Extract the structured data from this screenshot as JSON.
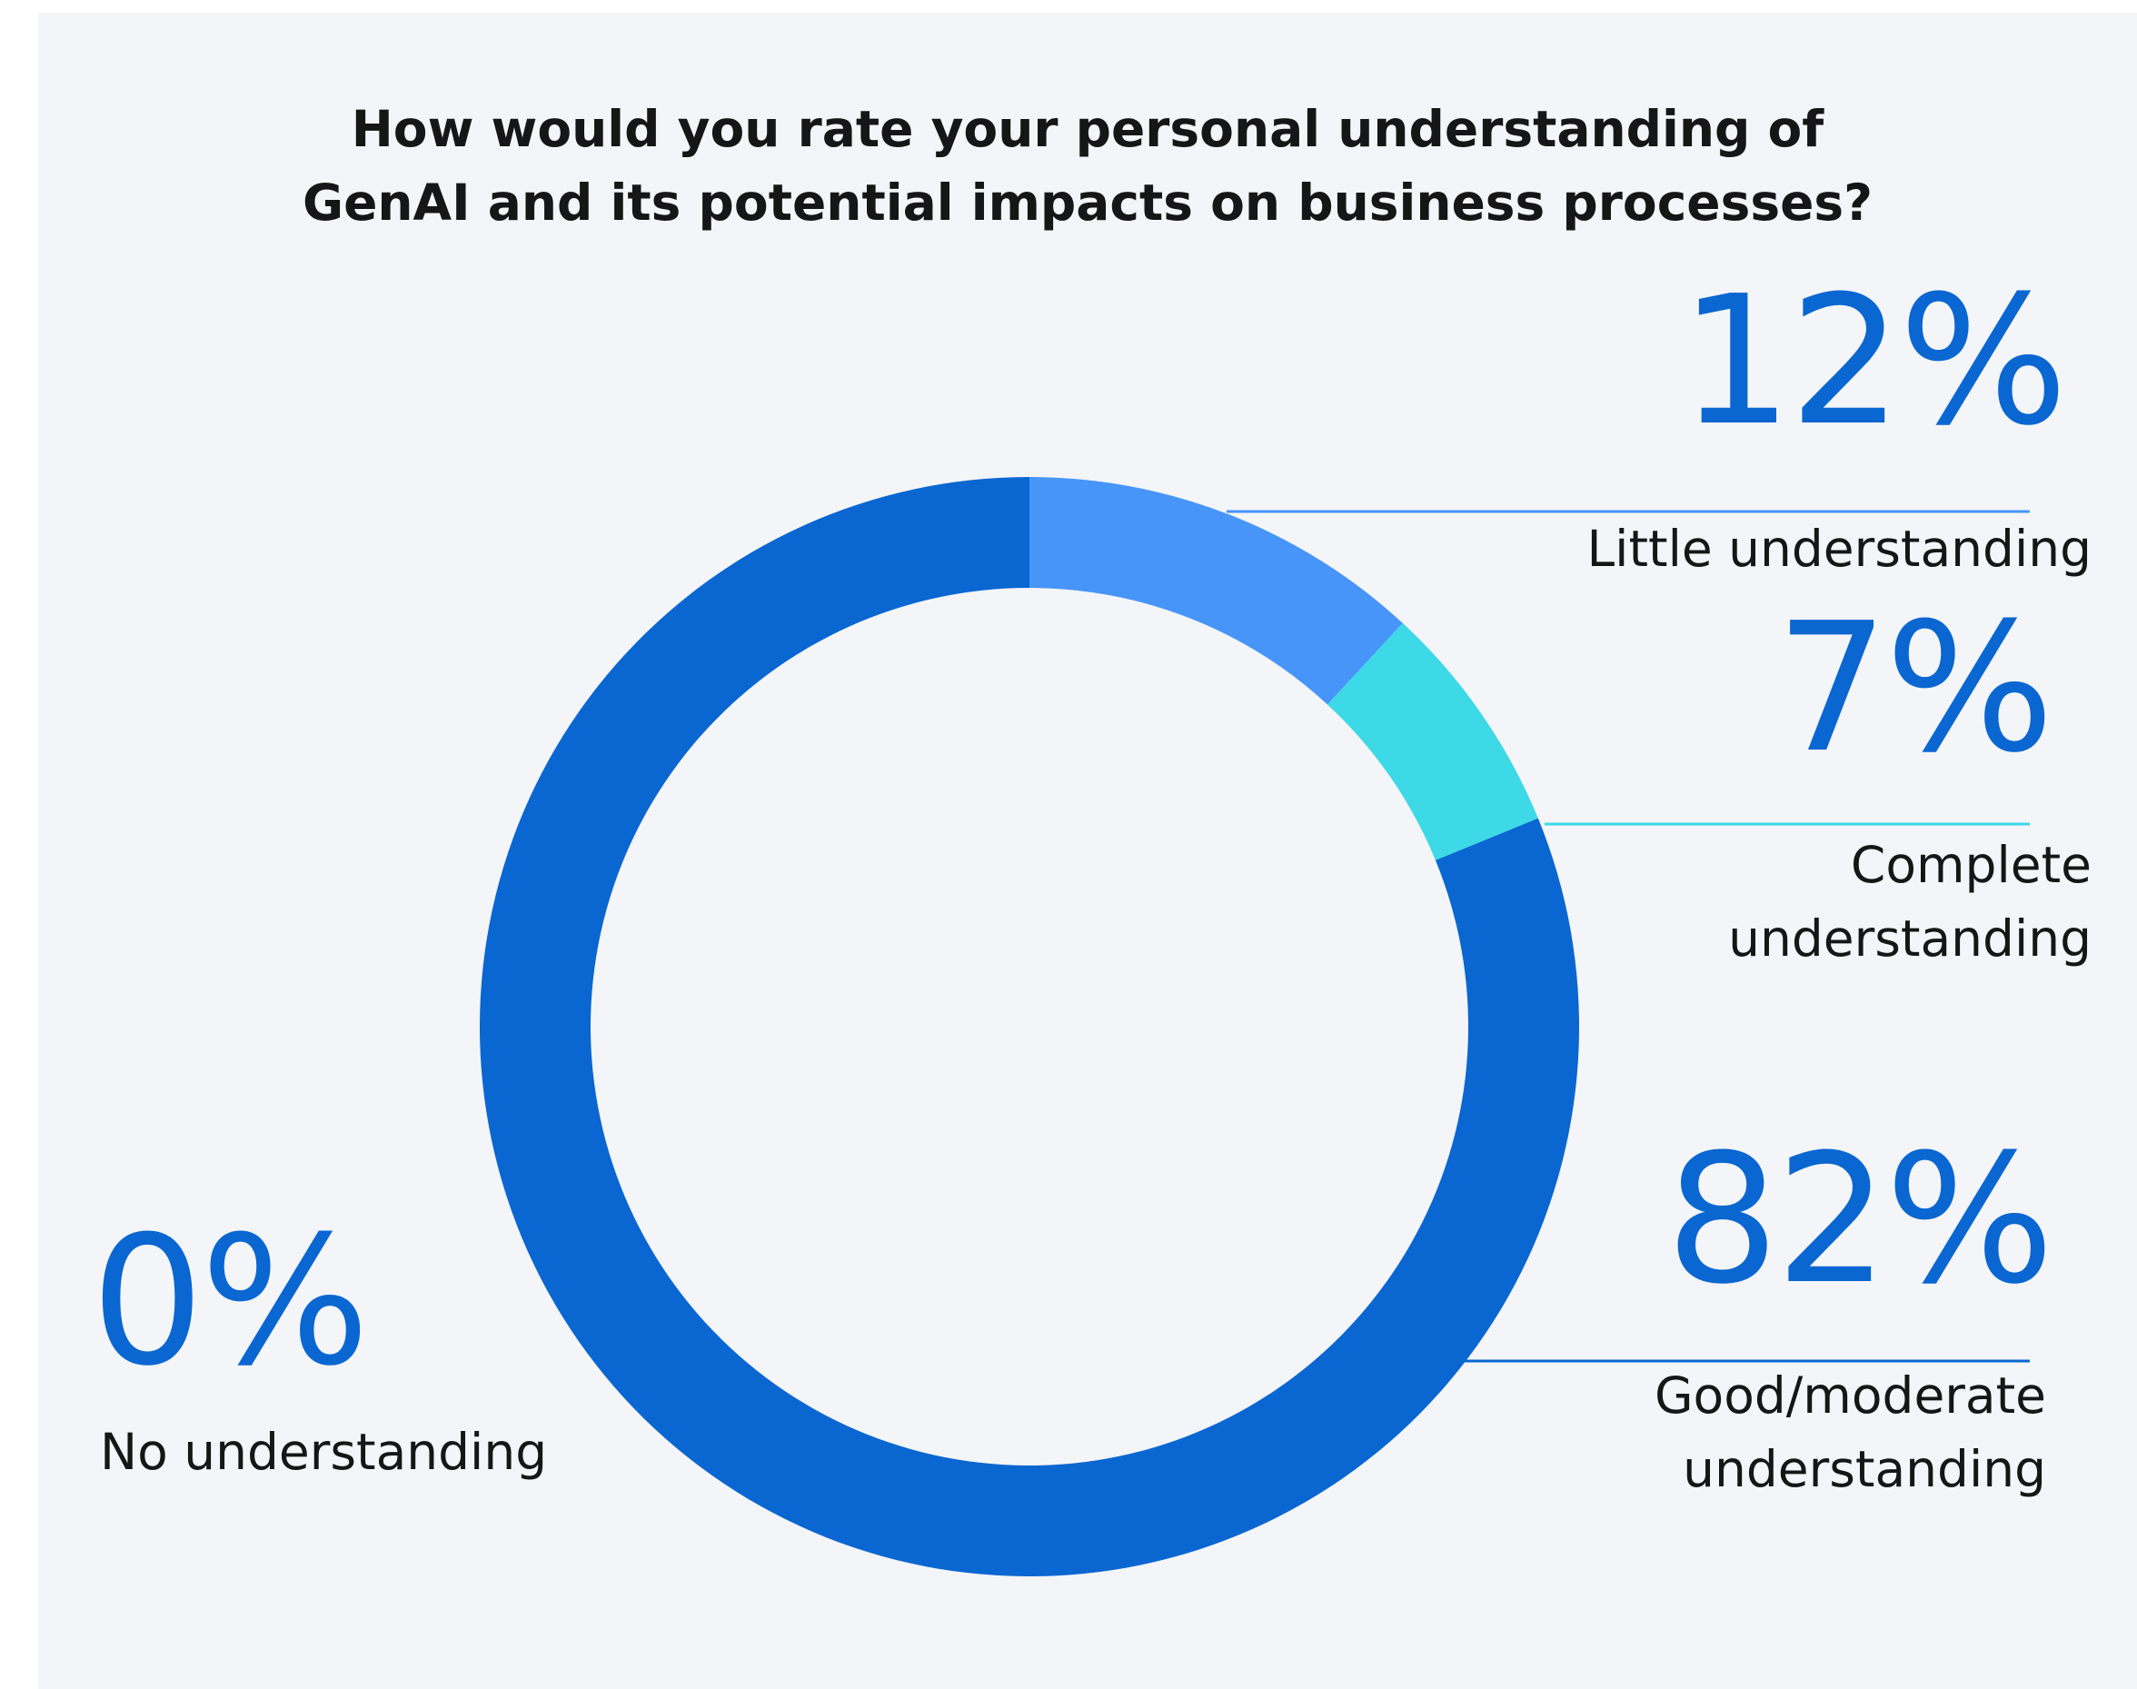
{
  "chart_data": {
    "type": "pie",
    "title_lines": [
      "How would you rate your personal understanding of",
      "GenAI and its potential impacts on business processes?"
    ],
    "slices": [
      {
        "label": "Little understanding",
        "label_lines": [
          "Little understanding"
        ],
        "value": 12,
        "value_label": "12%",
        "color": "#4795f8"
      },
      {
        "label": "Complete understanding",
        "label_lines": [
          "Complete",
          "understanding"
        ],
        "value": 7,
        "value_label": "7%",
        "color": "#3dd9e6"
      },
      {
        "label": "Good/moderate understanding",
        "label_lines": [
          "Good/moderate",
          "understanding"
        ],
        "value": 82,
        "value_label": "82%",
        "color": "#0a66d1"
      },
      {
        "label": "No understanding",
        "label_lines": [
          "No understanding"
        ],
        "value": 0,
        "value_label": "0%",
        "color": "#0a66d1"
      }
    ],
    "donut": true,
    "start_angle": "top",
    "direction": "clockwise",
    "legend": "none",
    "background": "#f3f5f8"
  }
}
